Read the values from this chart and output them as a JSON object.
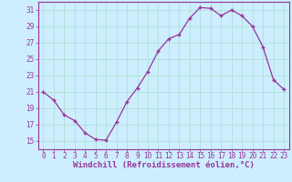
{
  "x": [
    0,
    1,
    2,
    3,
    4,
    5,
    6,
    7,
    8,
    9,
    10,
    11,
    12,
    13,
    14,
    15,
    16,
    17,
    18,
    19,
    20,
    21,
    22,
    23
  ],
  "y": [
    21.0,
    20.0,
    18.2,
    17.5,
    16.0,
    15.2,
    15.1,
    17.3,
    19.8,
    21.5,
    23.5,
    26.0,
    27.5,
    28.0,
    30.0,
    31.3,
    31.2,
    30.3,
    31.0,
    30.3,
    29.0,
    26.5,
    22.5,
    21.3
  ],
  "line_color": "#993399",
  "marker": "+",
  "bg_color": "#cceeff",
  "grid_color": "#aaddcc",
  "label_color": "#993399",
  "xlabel": "Windchill (Refroidissement éolien,°C)",
  "ylim": [
    14.0,
    32.0
  ],
  "yticks": [
    15,
    17,
    19,
    21,
    23,
    25,
    27,
    29,
    31
  ],
  "xlim": [
    -0.5,
    23.5
  ],
  "tick_fontsize": 5.5,
  "label_fontsize": 6.5
}
